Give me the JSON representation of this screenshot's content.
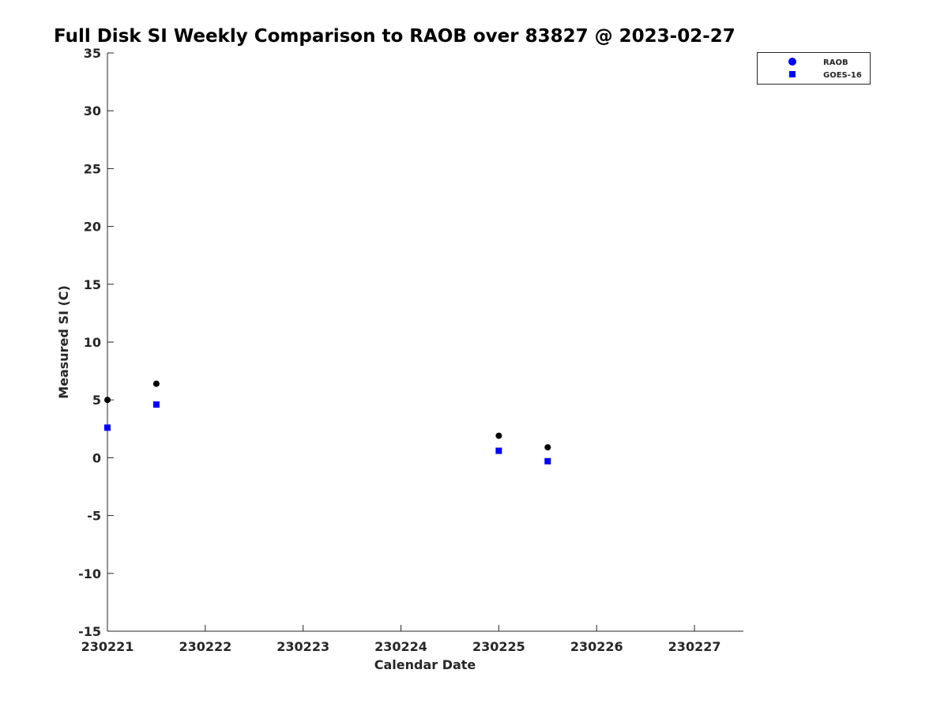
{
  "chart_data": {
    "type": "scatter",
    "title": "Full Disk SI Weekly Comparison to RAOB over 83827 @ 2023-02-27",
    "xlabel": "Calendar Date",
    "ylabel": "Measured SI (C)",
    "xlim": [
      230221,
      230227.5
    ],
    "ylim": [
      -15,
      35
    ],
    "xticks": [
      230221,
      230222,
      230223,
      230224,
      230225,
      230226,
      230227
    ],
    "xtick_labels": [
      "230221",
      "230222",
      "230223",
      "230224",
      "230225",
      "230226",
      "230227"
    ],
    "yticks": [
      -15,
      -10,
      -5,
      0,
      5,
      10,
      15,
      20,
      25,
      30,
      35
    ],
    "ytick_labels": [
      "-15",
      "-10",
      "-5",
      "0",
      "5",
      "10",
      "15",
      "20",
      "25",
      "30",
      "35"
    ],
    "grid": false,
    "legend_position": "top-right",
    "series": [
      {
        "name": "RAOB",
        "marker": "circle",
        "color": "#000000",
        "legend_color": "#0000ff",
        "x": [
          230221.0,
          230221.5,
          230225.0,
          230225.5
        ],
        "y": [
          5.0,
          6.4,
          1.9,
          0.9
        ]
      },
      {
        "name": "GOES-16",
        "marker": "square",
        "color": "#0000ff",
        "legend_color": "#0000ff",
        "x": [
          230221.0,
          230221.5,
          230225.0,
          230225.5
        ],
        "y": [
          2.6,
          4.6,
          0.6,
          -0.3
        ]
      }
    ]
  }
}
